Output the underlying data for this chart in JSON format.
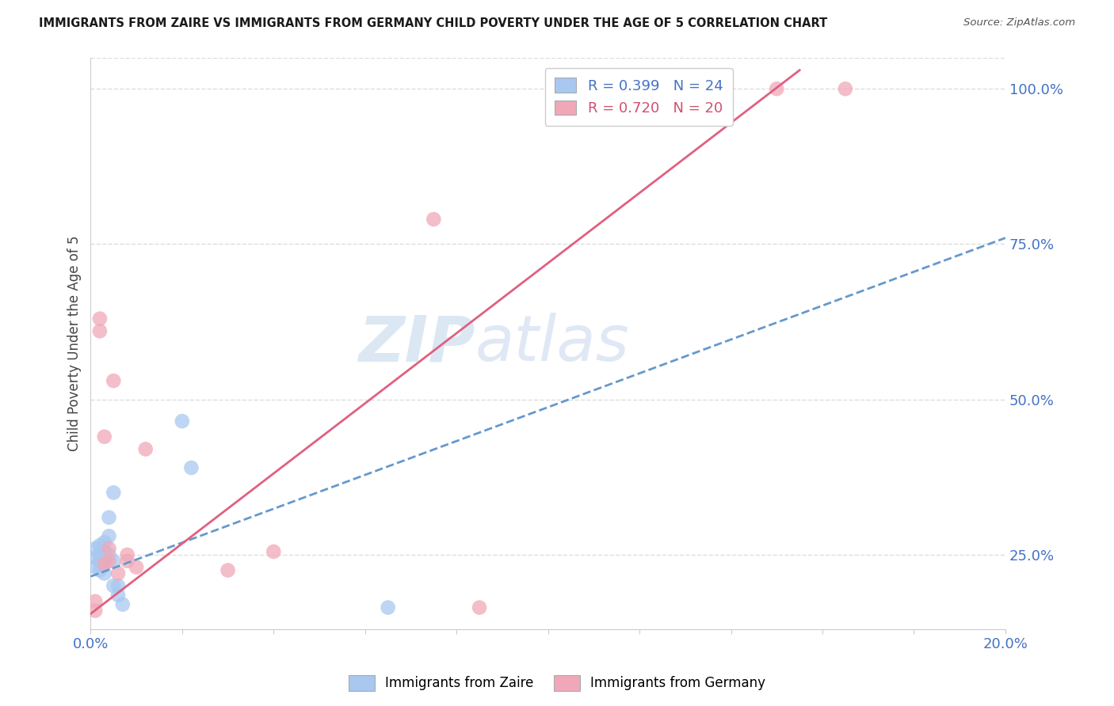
{
  "title": "IMMIGRANTS FROM ZAIRE VS IMMIGRANTS FROM GERMANY CHILD POVERTY UNDER THE AGE OF 5 CORRELATION CHART",
  "source": "Source: ZipAtlas.com",
  "ylabel": "Child Poverty Under the Age of 5",
  "xlim": [
    0.0,
    0.2
  ],
  "ylim": [
    0.13,
    1.05
  ],
  "xticks": [
    0.0,
    0.02,
    0.04,
    0.06,
    0.08,
    0.1,
    0.12,
    0.14,
    0.16,
    0.18,
    0.2
  ],
  "yticks_right": [
    0.25,
    0.5,
    0.75,
    1.0
  ],
  "ytick_right_labels": [
    "25.0%",
    "50.0%",
    "75.0%",
    "100.0%"
  ],
  "watermark_zip": "ZIP",
  "watermark_atlas": "atlas",
  "zaire_color": "#A8C8F0",
  "zaire_line_color": "#6699CC",
  "germany_color": "#F0A8B8",
  "germany_line_color": "#E06080",
  "zaire_R": 0.399,
  "zaire_N": 24,
  "germany_R": 0.72,
  "germany_N": 20,
  "zaire_x": [
    0.001,
    0.001,
    0.001,
    0.002,
    0.002,
    0.002,
    0.002,
    0.003,
    0.003,
    0.003,
    0.003,
    0.003,
    0.004,
    0.004,
    0.004,
    0.005,
    0.005,
    0.005,
    0.006,
    0.006,
    0.007,
    0.02,
    0.022,
    0.065
  ],
  "zaire_y": [
    0.245,
    0.26,
    0.23,
    0.265,
    0.25,
    0.24,
    0.225,
    0.27,
    0.255,
    0.24,
    0.235,
    0.22,
    0.31,
    0.28,
    0.25,
    0.35,
    0.24,
    0.2,
    0.2,
    0.185,
    0.17,
    0.465,
    0.39,
    0.165
  ],
  "germany_x": [
    0.001,
    0.001,
    0.002,
    0.002,
    0.003,
    0.003,
    0.004,
    0.004,
    0.005,
    0.006,
    0.008,
    0.008,
    0.01,
    0.012,
    0.03,
    0.04,
    0.075,
    0.085,
    0.15,
    0.165
  ],
  "germany_y": [
    0.175,
    0.16,
    0.63,
    0.61,
    0.44,
    0.235,
    0.26,
    0.24,
    0.53,
    0.22,
    0.25,
    0.24,
    0.23,
    0.42,
    0.225,
    0.255,
    0.79,
    0.165,
    1.0,
    1.0
  ],
  "background_color": "#FFFFFF",
  "grid_color": "#DDDDDD",
  "legend_zaire_label": "R = 0.399   N = 24",
  "legend_germany_label": "R = 0.720   N = 20",
  "zaire_trend_x0": 0.0,
  "zaire_trend_y0": 0.215,
  "zaire_trend_x1": 0.2,
  "zaire_trend_y1": 0.76,
  "germany_trend_x0": 0.0,
  "germany_trend_y0": 0.155,
  "germany_trend_x1": 0.155,
  "germany_trend_y1": 1.03
}
